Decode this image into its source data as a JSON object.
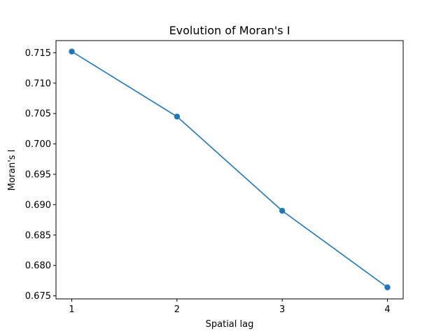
{
  "chart_data": {
    "type": "line",
    "title": "Evolution of Moran's I",
    "xlabel": "Spatial lag",
    "ylabel": "Moran's I",
    "x": [
      1,
      2,
      3,
      4
    ],
    "series": [
      {
        "values": [
          0.7152,
          0.7045,
          0.689,
          0.6764
        ],
        "color": "#1f77b4",
        "marker": "circle"
      }
    ],
    "xlim": [
      0.85,
      4.15
    ],
    "ylim": [
      0.6745,
      0.717
    ],
    "xticks": [
      1,
      2,
      3,
      4
    ],
    "xtick_labels": [
      "1",
      "2",
      "3",
      "4"
    ],
    "yticks": [
      0.675,
      0.68,
      0.685,
      0.69,
      0.695,
      0.7,
      0.705,
      0.71,
      0.715
    ],
    "ytick_labels": [
      "0.675",
      "0.680",
      "0.685",
      "0.690",
      "0.695",
      "0.700",
      "0.705",
      "0.710",
      "0.715"
    ],
    "grid": false,
    "legend": false
  }
}
